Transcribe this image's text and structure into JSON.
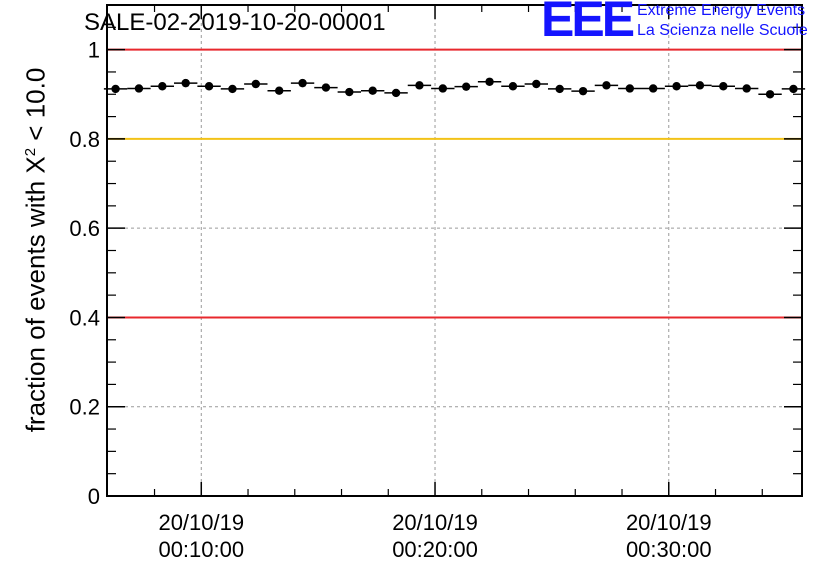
{
  "title": "SALE-02-2019-10-20-00001",
  "logo": {
    "mark": "EEE",
    "line1": "Extreme Energy Events",
    "line2": "La Scienza nelle Scuole",
    "color": "#1414ff"
  },
  "chart_data": {
    "type": "scatter",
    "title": "SALE-02-2019-10-20-00001",
    "xlabel": "",
    "ylabel_prefix": "fraction of events with ",
    "ylabel_symbol": "X",
    "ylabel_sup": "2",
    "ylabel_suffix": " < 10.0",
    "ylim": [
      0,
      1.1
    ],
    "yticks": [
      0,
      0.2,
      0.4,
      0.6,
      0.8,
      1
    ],
    "ytick_labels": [
      "0",
      "0.2",
      "0.4",
      "0.6",
      "0.8",
      "1"
    ],
    "xlim_seconds": [
      0,
      1784
    ],
    "xticks": [
      {
        "t": 242,
        "date": "20/10/19",
        "time": "00:10:00"
      },
      {
        "t": 842,
        "date": "20/10/19",
        "time": "00:20:00"
      },
      {
        "t": 1442,
        "date": "20/10/19",
        "time": "00:30:00"
      }
    ],
    "grid": true,
    "bin_width_seconds": 60,
    "x_first_bin_seconds": 22,
    "points": [
      0.912,
      0.913,
      0.918,
      0.925,
      0.918,
      0.912,
      0.923,
      0.908,
      0.925,
      0.915,
      0.905,
      0.908,
      0.903,
      0.92,
      0.913,
      0.917,
      0.928,
      0.918,
      0.923,
      0.912,
      0.907,
      0.92,
      0.913,
      0.913,
      0.918,
      0.92,
      0.918,
      0.913,
      0.9,
      0.912
    ],
    "reference_lines": [
      {
        "y": 1.0,
        "color": "#e8282d"
      },
      {
        "y": 0.8,
        "color": "#f2c218"
      },
      {
        "y": 0.4,
        "color": "#e8282d"
      }
    ]
  }
}
